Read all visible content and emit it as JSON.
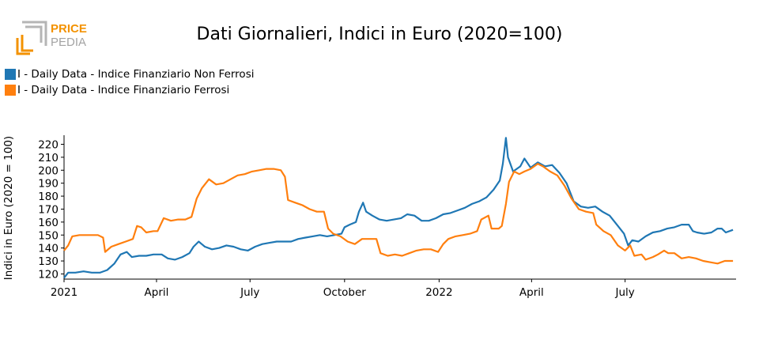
{
  "logo": {
    "top": "PRICE",
    "bottom": "PEDIA",
    "accent": "#f39200",
    "grey": "#a3a3a3"
  },
  "title": "Dati Giornalieri, Indici in Euro (2020=100)",
  "chart_data": {
    "type": "line",
    "title": "Dati Giornalieri, Indici in Euro (2020=100)",
    "ylabel": "Indici in Euro (2020 = 100)",
    "xlabel": "",
    "ylim": [
      116,
      227
    ],
    "xlim": [
      "2021-01-01",
      "2022-10-17"
    ],
    "x_ticks": [
      {
        "date": "2021-01-01",
        "label": "2021"
      },
      {
        "date": "2021-04-01",
        "label": "April"
      },
      {
        "date": "2021-07-01",
        "label": "July"
      },
      {
        "date": "2021-10-01",
        "label": "October"
      },
      {
        "date": "2022-01-01",
        "label": "2022"
      },
      {
        "date": "2022-04-01",
        "label": "April"
      },
      {
        "date": "2022-07-01",
        "label": "July"
      }
    ],
    "y_ticks": [
      120,
      130,
      140,
      150,
      160,
      170,
      180,
      190,
      200,
      210,
      220
    ],
    "grid": false,
    "legend_position": "top-left",
    "series": [
      {
        "name": "I - Daily Data - Indice Finanziario Non Ferrosi",
        "color": "#1f77b4",
        "points": [
          [
            "2021-01-01",
            117
          ],
          [
            "2021-01-05",
            121
          ],
          [
            "2021-01-12",
            121
          ],
          [
            "2021-01-20",
            122
          ],
          [
            "2021-01-28",
            121
          ],
          [
            "2021-02-05",
            121
          ],
          [
            "2021-02-12",
            123
          ],
          [
            "2021-02-19",
            128
          ],
          [
            "2021-02-25",
            135
          ],
          [
            "2021-03-03",
            137
          ],
          [
            "2021-03-08",
            133
          ],
          [
            "2021-03-15",
            134
          ],
          [
            "2021-03-22",
            134
          ],
          [
            "2021-03-29",
            135
          ],
          [
            "2021-04-06",
            135
          ],
          [
            "2021-04-12",
            132
          ],
          [
            "2021-04-19",
            131
          ],
          [
            "2021-04-26",
            133
          ],
          [
            "2021-05-03",
            136
          ],
          [
            "2021-05-07",
            141
          ],
          [
            "2021-05-12",
            145
          ],
          [
            "2021-05-18",
            141
          ],
          [
            "2021-05-25",
            139
          ],
          [
            "2021-06-01",
            140
          ],
          [
            "2021-06-08",
            142
          ],
          [
            "2021-06-15",
            141
          ],
          [
            "2021-06-22",
            139
          ],
          [
            "2021-06-29",
            138
          ],
          [
            "2021-07-06",
            141
          ],
          [
            "2021-07-13",
            143
          ],
          [
            "2021-07-20",
            144
          ],
          [
            "2021-07-27",
            145
          ],
          [
            "2021-08-03",
            145
          ],
          [
            "2021-08-10",
            145
          ],
          [
            "2021-08-17",
            147
          ],
          [
            "2021-08-24",
            148
          ],
          [
            "2021-08-31",
            149
          ],
          [
            "2021-09-07",
            150
          ],
          [
            "2021-09-14",
            149
          ],
          [
            "2021-09-21",
            150
          ],
          [
            "2021-09-28",
            151
          ],
          [
            "2021-10-01",
            156
          ],
          [
            "2021-10-06",
            158
          ],
          [
            "2021-10-12",
            160
          ],
          [
            "2021-10-15",
            168
          ],
          [
            "2021-10-19",
            175
          ],
          [
            "2021-10-22",
            168
          ],
          [
            "2021-10-28",
            165
          ],
          [
            "2021-11-04",
            162
          ],
          [
            "2021-11-11",
            161
          ],
          [
            "2021-11-18",
            162
          ],
          [
            "2021-11-25",
            163
          ],
          [
            "2021-12-01",
            166
          ],
          [
            "2021-12-08",
            165
          ],
          [
            "2021-12-15",
            161
          ],
          [
            "2021-12-22",
            161
          ],
          [
            "2021-12-29",
            163
          ],
          [
            "2022-01-05",
            166
          ],
          [
            "2022-01-12",
            167
          ],
          [
            "2022-01-19",
            169
          ],
          [
            "2022-01-26",
            171
          ],
          [
            "2022-02-02",
            174
          ],
          [
            "2022-02-09",
            176
          ],
          [
            "2022-02-16",
            179
          ],
          [
            "2022-02-23",
            185
          ],
          [
            "2022-03-01",
            192
          ],
          [
            "2022-03-04",
            205
          ],
          [
            "2022-03-07",
            225
          ],
          [
            "2022-03-09",
            210
          ],
          [
            "2022-03-14",
            199
          ],
          [
            "2022-03-21",
            203
          ],
          [
            "2022-03-25",
            209
          ],
          [
            "2022-03-31",
            202
          ],
          [
            "2022-04-07",
            206
          ],
          [
            "2022-04-14",
            203
          ],
          [
            "2022-04-21",
            204
          ],
          [
            "2022-04-28",
            198
          ],
          [
            "2022-05-05",
            190
          ],
          [
            "2022-05-12",
            176
          ],
          [
            "2022-05-19",
            172
          ],
          [
            "2022-05-26",
            171
          ],
          [
            "2022-06-02",
            172
          ],
          [
            "2022-06-09",
            168
          ],
          [
            "2022-06-16",
            165
          ],
          [
            "2022-06-23",
            158
          ],
          [
            "2022-06-30",
            151
          ],
          [
            "2022-07-04",
            142
          ],
          [
            "2022-07-08",
            146
          ],
          [
            "2022-07-14",
            145
          ],
          [
            "2022-07-21",
            149
          ],
          [
            "2022-07-28",
            152
          ],
          [
            "2022-08-04",
            153
          ],
          [
            "2022-08-11",
            155
          ],
          [
            "2022-08-18",
            156
          ],
          [
            "2022-08-25",
            158
          ],
          [
            "2022-09-01",
            158
          ],
          [
            "2022-09-05",
            153
          ],
          [
            "2022-09-09",
            152
          ],
          [
            "2022-09-16",
            151
          ],
          [
            "2022-09-23",
            152
          ],
          [
            "2022-09-29",
            155
          ],
          [
            "2022-10-03",
            155
          ],
          [
            "2022-10-07",
            152
          ],
          [
            "2022-10-14",
            154
          ]
        ]
      },
      {
        "name": "I - Daily Data - Indice Finanziario Ferrosi",
        "color": "#ff7f0e",
        "points": [
          [
            "2021-01-01",
            138
          ],
          [
            "2021-01-05",
            142
          ],
          [
            "2021-01-09",
            149
          ],
          [
            "2021-01-16",
            150
          ],
          [
            "2021-01-25",
            150
          ],
          [
            "2021-02-03",
            150
          ],
          [
            "2021-02-08",
            148
          ],
          [
            "2021-02-10",
            137
          ],
          [
            "2021-02-16",
            141
          ],
          [
            "2021-02-23",
            143
          ],
          [
            "2021-03-02",
            145
          ],
          [
            "2021-03-09",
            147
          ],
          [
            "2021-03-13",
            157
          ],
          [
            "2021-03-17",
            156
          ],
          [
            "2021-03-22",
            152
          ],
          [
            "2021-03-29",
            153
          ],
          [
            "2021-04-02",
            153
          ],
          [
            "2021-04-08",
            163
          ],
          [
            "2021-04-15",
            161
          ],
          [
            "2021-04-22",
            162
          ],
          [
            "2021-04-29",
            162
          ],
          [
            "2021-05-05",
            164
          ],
          [
            "2021-05-10",
            178
          ],
          [
            "2021-05-15",
            186
          ],
          [
            "2021-05-22",
            193
          ],
          [
            "2021-05-29",
            189
          ],
          [
            "2021-06-05",
            190
          ],
          [
            "2021-06-12",
            193
          ],
          [
            "2021-06-19",
            196
          ],
          [
            "2021-06-26",
            197
          ],
          [
            "2021-07-03",
            199
          ],
          [
            "2021-07-10",
            200
          ],
          [
            "2021-07-17",
            201
          ],
          [
            "2021-07-24",
            201
          ],
          [
            "2021-07-31",
            200
          ],
          [
            "2021-08-04",
            195
          ],
          [
            "2021-08-07",
            177
          ],
          [
            "2021-08-14",
            175
          ],
          [
            "2021-08-21",
            173
          ],
          [
            "2021-08-28",
            170
          ],
          [
            "2021-09-04",
            168
          ],
          [
            "2021-09-11",
            168
          ],
          [
            "2021-09-15",
            155
          ],
          [
            "2021-09-20",
            151
          ],
          [
            "2021-09-27",
            149
          ],
          [
            "2021-10-04",
            145
          ],
          [
            "2021-10-11",
            143
          ],
          [
            "2021-10-18",
            147
          ],
          [
            "2021-10-25",
            147
          ],
          [
            "2021-11-01",
            147
          ],
          [
            "2021-11-05",
            136
          ],
          [
            "2021-11-12",
            134
          ],
          [
            "2021-11-19",
            135
          ],
          [
            "2021-11-26",
            134
          ],
          [
            "2021-12-03",
            136
          ],
          [
            "2021-12-10",
            138
          ],
          [
            "2021-12-17",
            139
          ],
          [
            "2021-12-24",
            139
          ],
          [
            "2021-12-31",
            137
          ],
          [
            "2022-01-05",
            143
          ],
          [
            "2022-01-10",
            147
          ],
          [
            "2022-01-17",
            149
          ],
          [
            "2022-01-24",
            150
          ],
          [
            "2022-01-31",
            151
          ],
          [
            "2022-02-07",
            153
          ],
          [
            "2022-02-11",
            162
          ],
          [
            "2022-02-18",
            165
          ],
          [
            "2022-02-21",
            155
          ],
          [
            "2022-02-28",
            155
          ],
          [
            "2022-03-03",
            157
          ],
          [
            "2022-03-07",
            174
          ],
          [
            "2022-03-10",
            191
          ],
          [
            "2022-03-15",
            199
          ],
          [
            "2022-03-20",
            197
          ],
          [
            "2022-03-25",
            199
          ],
          [
            "2022-03-31",
            201
          ],
          [
            "2022-04-07",
            205
          ],
          [
            "2022-04-12",
            203
          ],
          [
            "2022-04-19",
            199
          ],
          [
            "2022-04-26",
            196
          ],
          [
            "2022-05-03",
            188
          ],
          [
            "2022-05-10",
            178
          ],
          [
            "2022-05-17",
            170
          ],
          [
            "2022-05-24",
            168
          ],
          [
            "2022-05-31",
            167
          ],
          [
            "2022-06-03",
            158
          ],
          [
            "2022-06-10",
            153
          ],
          [
            "2022-06-17",
            150
          ],
          [
            "2022-06-24",
            142
          ],
          [
            "2022-07-01",
            138
          ],
          [
            "2022-07-06",
            142
          ],
          [
            "2022-07-10",
            134
          ],
          [
            "2022-07-17",
            135
          ],
          [
            "2022-07-21",
            131
          ],
          [
            "2022-07-28",
            133
          ],
          [
            "2022-08-02",
            135
          ],
          [
            "2022-08-08",
            138
          ],
          [
            "2022-08-12",
            136
          ],
          [
            "2022-08-18",
            136
          ],
          [
            "2022-08-25",
            132
          ],
          [
            "2022-09-01",
            133
          ],
          [
            "2022-09-08",
            132
          ],
          [
            "2022-09-15",
            130
          ],
          [
            "2022-09-22",
            129
          ],
          [
            "2022-09-29",
            128
          ],
          [
            "2022-10-06",
            130
          ],
          [
            "2022-10-14",
            130
          ]
        ]
      }
    ]
  }
}
